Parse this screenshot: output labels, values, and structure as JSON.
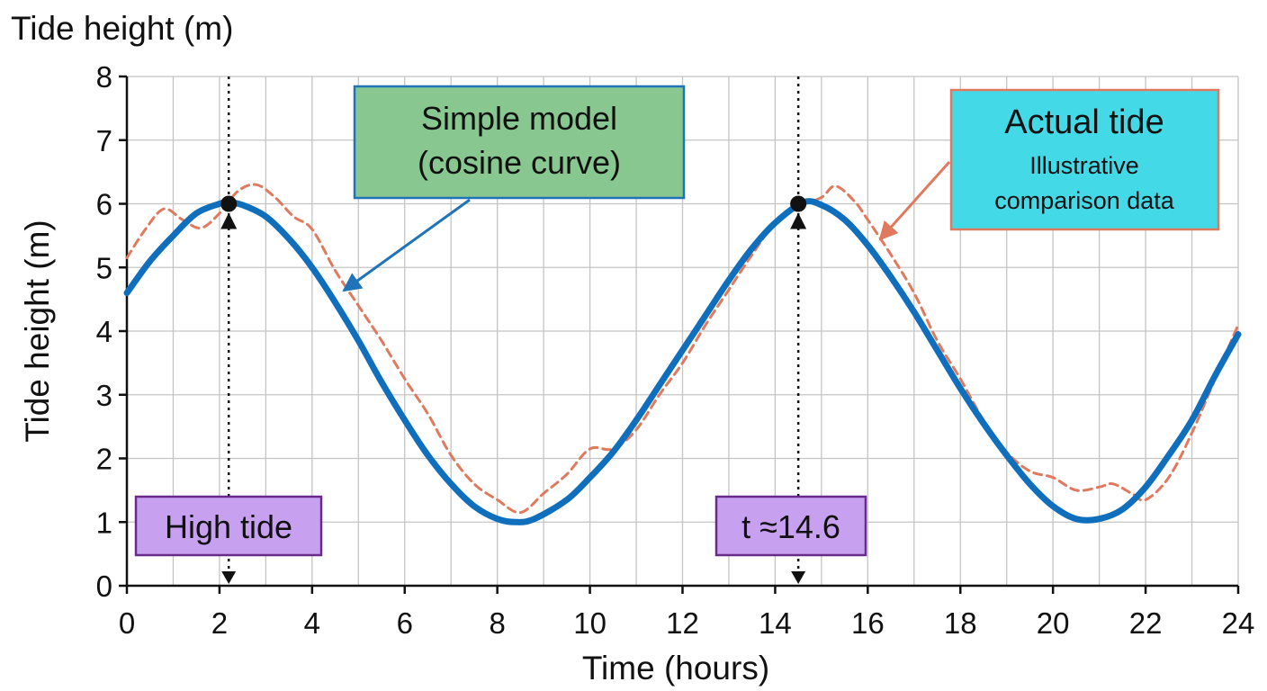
{
  "chart_data": {
    "type": "line",
    "title": "Tide height (m)",
    "xlabel": "Time (hours)",
    "ylabel": "Tide height (m)",
    "xlim": [
      0,
      24
    ],
    "ylim": [
      0,
      8
    ],
    "x_ticks": [
      "0",
      "2",
      "4",
      "6",
      "8",
      "10",
      "12",
      "14",
      "16",
      "18",
      "20",
      "22",
      "24"
    ],
    "y_ticks": [
      "0",
      "1",
      "2",
      "3",
      "4",
      "5",
      "6",
      "7",
      "8"
    ],
    "grid": true,
    "series": [
      {
        "key": "model",
        "style": "solid",
        "color": "#0f6fbd",
        "x": [
          0,
          0.5,
          1,
          1.5,
          2,
          2.2,
          2.5,
          3,
          3.5,
          4,
          4.5,
          5,
          5.5,
          6,
          6.5,
          7,
          7.5,
          8,
          8.4,
          8.8,
          9.5,
          10,
          10.5,
          11,
          11.5,
          12,
          12.5,
          13,
          13.5,
          14,
          14.6,
          15,
          15.5,
          16,
          16.5,
          17,
          17.5,
          18,
          18.5,
          19,
          19.5,
          20,
          20.5,
          21,
          21.5,
          22,
          22.5,
          23,
          23.5,
          24
        ],
        "y": [
          4.6,
          5.1,
          5.5,
          5.85,
          6.0,
          6.02,
          5.98,
          5.8,
          5.45,
          5.0,
          4.45,
          3.85,
          3.2,
          2.6,
          2.05,
          1.6,
          1.25,
          1.05,
          1.0,
          1.05,
          1.35,
          1.7,
          2.1,
          2.6,
          3.15,
          3.7,
          4.25,
          4.8,
          5.3,
          5.7,
          6.02,
          5.98,
          5.75,
          5.35,
          4.85,
          4.3,
          3.7,
          3.1,
          2.55,
          2.05,
          1.6,
          1.25,
          1.05,
          1.05,
          1.2,
          1.55,
          2.05,
          2.6,
          3.3,
          3.95
        ]
      },
      {
        "key": "actual",
        "style": "dashed",
        "color": "#e07a5f",
        "x": [
          0,
          0.4,
          0.8,
          1.2,
          1.6,
          2.0,
          2.4,
          2.8,
          3.2,
          3.6,
          4.0,
          4.5,
          5.0,
          5.5,
          6.0,
          6.5,
          7.0,
          7.5,
          8.0,
          8.5,
          9.0,
          9.5,
          10.0,
          10.5,
          11.0,
          11.5,
          12.0,
          12.5,
          13.0,
          13.5,
          14.0,
          14.5,
          15.0,
          15.3,
          15.7,
          16.0,
          16.5,
          17.0,
          17.5,
          18.0,
          18.5,
          19.0,
          19.5,
          20.0,
          20.5,
          21.0,
          21.3,
          21.7,
          22.0,
          22.5,
          23.0,
          23.5,
          24.0
        ],
        "y": [
          5.15,
          5.6,
          5.92,
          5.75,
          5.62,
          5.85,
          6.2,
          6.3,
          6.1,
          5.8,
          5.6,
          4.95,
          4.4,
          3.85,
          3.25,
          2.7,
          2.05,
          1.6,
          1.35,
          1.15,
          1.45,
          1.75,
          2.15,
          2.15,
          2.45,
          3.0,
          3.5,
          4.1,
          4.65,
          5.2,
          5.7,
          5.95,
          6.1,
          6.28,
          6.05,
          5.75,
          5.2,
          4.6,
          3.85,
          3.25,
          2.6,
          2.1,
          1.8,
          1.7,
          1.5,
          1.55,
          1.6,
          1.45,
          1.35,
          1.7,
          2.4,
          3.25,
          4.1
        ]
      }
    ],
    "points": [
      {
        "x": 2.2,
        "y": 6.0
      },
      {
        "x": 14.5,
        "y": 6.0
      }
    ],
    "vertical_markers": [
      2.2,
      14.5
    ],
    "annotations": {
      "model_box": {
        "line1": "Simple model",
        "line2": "(cosine curve)",
        "fill": "#88c78f",
        "border": "#1f73b7"
      },
      "actual_box": {
        "line1": "Actual tide",
        "line2": "Illustrative",
        "line3": "comparison data",
        "fill": "#44d9e6",
        "border": "#e07a5f"
      },
      "high_tide_label": "High tide",
      "time_label": "t ≈14.6",
      "label_fill": "#c7a0f0",
      "label_border": "#6a2a8a"
    }
  }
}
